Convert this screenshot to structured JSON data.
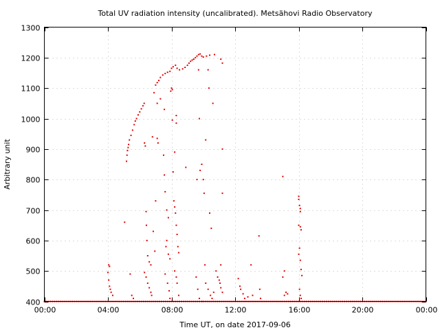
{
  "chart_data": {
    "type": "scatter",
    "title": "Total UV radiation intensity (uncalibrated). Metsähovi Radio Observatory",
    "xlabel": "Time UT, on date 2017-09-06",
    "ylabel": "Arbitrary unit",
    "xlim": [
      0,
      24
    ],
    "ylim": [
      400,
      1300
    ],
    "x_ticks": [
      "00:00",
      "04:00",
      "08:00",
      "12:00",
      "16:00",
      "20:00",
      "00:00"
    ],
    "y_ticks": [
      400,
      500,
      600,
      700,
      800,
      900,
      1000,
      1100,
      1200,
      1300
    ],
    "grid": true,
    "marker_color": "#e00000",
    "baseline_value": 400,
    "main_curve": [
      [
        5.17,
        860
      ],
      [
        5.2,
        880
      ],
      [
        5.23,
        895
      ],
      [
        5.27,
        905
      ],
      [
        5.3,
        915
      ],
      [
        5.35,
        930
      ],
      [
        5.45,
        945
      ],
      [
        5.55,
        962
      ],
      [
        5.65,
        980
      ],
      [
        5.72,
        992
      ],
      [
        5.8,
        1000
      ],
      [
        5.9,
        1012
      ],
      [
        6.0,
        1022
      ],
      [
        6.1,
        1032
      ],
      [
        6.2,
        1042
      ],
      [
        6.28,
        1050
      ],
      [
        6.9,
        1085
      ],
      [
        7.0,
        1110
      ],
      [
        7.1,
        1118
      ],
      [
        7.2,
        1125
      ],
      [
        7.3,
        1135
      ],
      [
        7.45,
        1143
      ],
      [
        7.6,
        1148
      ],
      [
        7.75,
        1152
      ],
      [
        7.9,
        1155
      ],
      [
        8.0,
        1165
      ],
      [
        8.1,
        1170
      ],
      [
        8.25,
        1175
      ],
      [
        8.35,
        1165
      ],
      [
        8.5,
        1160
      ],
      [
        8.7,
        1163
      ],
      [
        8.85,
        1168
      ],
      [
        9.0,
        1175
      ],
      [
        9.1,
        1182
      ],
      [
        9.2,
        1188
      ],
      [
        9.3,
        1192
      ],
      [
        9.4,
        1195
      ],
      [
        9.5,
        1200
      ],
      [
        9.6,
        1205
      ],
      [
        9.7,
        1210
      ],
      [
        9.8,
        1212
      ],
      [
        9.9,
        1205
      ],
      [
        10.0,
        1202
      ],
      [
        10.2,
        1205
      ],
      [
        10.4,
        1208
      ],
      [
        10.7,
        1210
      ],
      [
        11.1,
        1195
      ],
      [
        11.2,
        1182
      ]
    ],
    "scattered_points": [
      [
        4.05,
        520
      ],
      [
        4.1,
        515
      ],
      [
        4.0,
        495
      ],
      [
        4.05,
        470
      ],
      [
        4.1,
        450
      ],
      [
        4.15,
        440
      ],
      [
        4.2,
        430
      ],
      [
        4.3,
        420
      ],
      [
        5.05,
        660
      ],
      [
        5.5,
        420
      ],
      [
        5.6,
        410
      ],
      [
        5.4,
        490
      ],
      [
        6.3,
        920
      ],
      [
        6.35,
        910
      ],
      [
        6.4,
        695
      ],
      [
        6.42,
        650
      ],
      [
        6.45,
        600
      ],
      [
        6.3,
        495
      ],
      [
        6.4,
        480
      ],
      [
        6.5,
        460
      ],
      [
        6.6,
        445
      ],
      [
        6.7,
        430
      ],
      [
        6.75,
        420
      ],
      [
        6.5,
        550
      ],
      [
        6.6,
        530
      ],
      [
        6.7,
        520
      ],
      [
        6.8,
        940
      ],
      [
        6.85,
        630
      ],
      [
        6.95,
        565
      ],
      [
        7.0,
        730
      ],
      [
        7.1,
        1050
      ],
      [
        7.1,
        935
      ],
      [
        7.15,
        920
      ],
      [
        7.3,
        1065
      ],
      [
        7.5,
        880
      ],
      [
        7.55,
        815
      ],
      [
        7.6,
        760
      ],
      [
        7.7,
        700
      ],
      [
        7.8,
        675
      ],
      [
        7.7,
        600
      ],
      [
        7.65,
        580
      ],
      [
        7.8,
        555
      ],
      [
        7.9,
        540
      ],
      [
        7.6,
        490
      ],
      [
        7.75,
        460
      ],
      [
        7.85,
        435
      ],
      [
        7.9,
        410
      ],
      [
        8.0,
        1100
      ],
      [
        8.05,
        1095
      ],
      [
        8.2,
        890
      ],
      [
        8.1,
        825
      ],
      [
        8.3,
        1010
      ],
      [
        8.3,
        985
      ],
      [
        7.55,
        1030
      ],
      [
        7.95,
        1090
      ],
      [
        8.05,
        995
      ],
      [
        8.15,
        730
      ],
      [
        8.2,
        710
      ],
      [
        8.25,
        690
      ],
      [
        8.3,
        650
      ],
      [
        8.35,
        620
      ],
      [
        8.4,
        580
      ],
      [
        8.45,
        560
      ],
      [
        8.2,
        500
      ],
      [
        8.3,
        480
      ],
      [
        8.35,
        460
      ],
      [
        8.45,
        420
      ],
      [
        8.9,
        840
      ],
      [
        9.7,
        1160
      ],
      [
        9.75,
        1000
      ],
      [
        9.8,
        830
      ],
      [
        9.9,
        850
      ],
      [
        10.15,
        930
      ],
      [
        10.0,
        800
      ],
      [
        10.05,
        755
      ],
      [
        9.6,
        800
      ],
      [
        9.55,
        480
      ],
      [
        9.65,
        440
      ],
      [
        9.75,
        410
      ],
      [
        9.9,
        400
      ],
      [
        10.3,
        1160
      ],
      [
        10.35,
        1100
      ],
      [
        10.4,
        690
      ],
      [
        10.5,
        640
      ],
      [
        10.6,
        1050
      ],
      [
        10.1,
        520
      ],
      [
        10.15,
        460
      ],
      [
        10.3,
        440
      ],
      [
        10.45,
        420
      ],
      [
        10.55,
        410
      ],
      [
        10.65,
        430
      ],
      [
        10.8,
        500
      ],
      [
        10.9,
        480
      ],
      [
        11.0,
        470
      ],
      [
        11.05,
        460
      ],
      [
        11.1,
        445
      ],
      [
        11.2,
        900
      ],
      [
        11.2,
        755
      ],
      [
        11.1,
        520
      ],
      [
        11.2,
        430
      ],
      [
        12.2,
        475
      ],
      [
        12.3,
        450
      ],
      [
        12.35,
        440
      ],
      [
        12.5,
        425
      ],
      [
        12.6,
        410
      ],
      [
        12.8,
        415
      ],
      [
        13.0,
        520
      ],
      [
        13.1,
        420
      ],
      [
        13.5,
        615
      ],
      [
        13.6,
        410
      ],
      [
        13.55,
        440
      ],
      [
        15.0,
        810
      ],
      [
        15.0,
        480
      ],
      [
        15.1,
        500
      ],
      [
        15.2,
        430
      ],
      [
        15.3,
        425
      ],
      [
        15.1,
        420
      ],
      [
        16.0,
        745
      ],
      [
        16.0,
        735
      ],
      [
        16.05,
        715
      ],
      [
        16.1,
        705
      ],
      [
        16.1,
        695
      ],
      [
        16.0,
        650
      ],
      [
        16.1,
        645
      ],
      [
        16.15,
        635
      ],
      [
        16.05,
        575
      ],
      [
        16.0,
        555
      ],
      [
        16.1,
        535
      ],
      [
        16.15,
        505
      ],
      [
        16.2,
        485
      ],
      [
        16.05,
        440
      ],
      [
        16.1,
        420
      ],
      [
        16.15,
        410
      ]
    ]
  }
}
